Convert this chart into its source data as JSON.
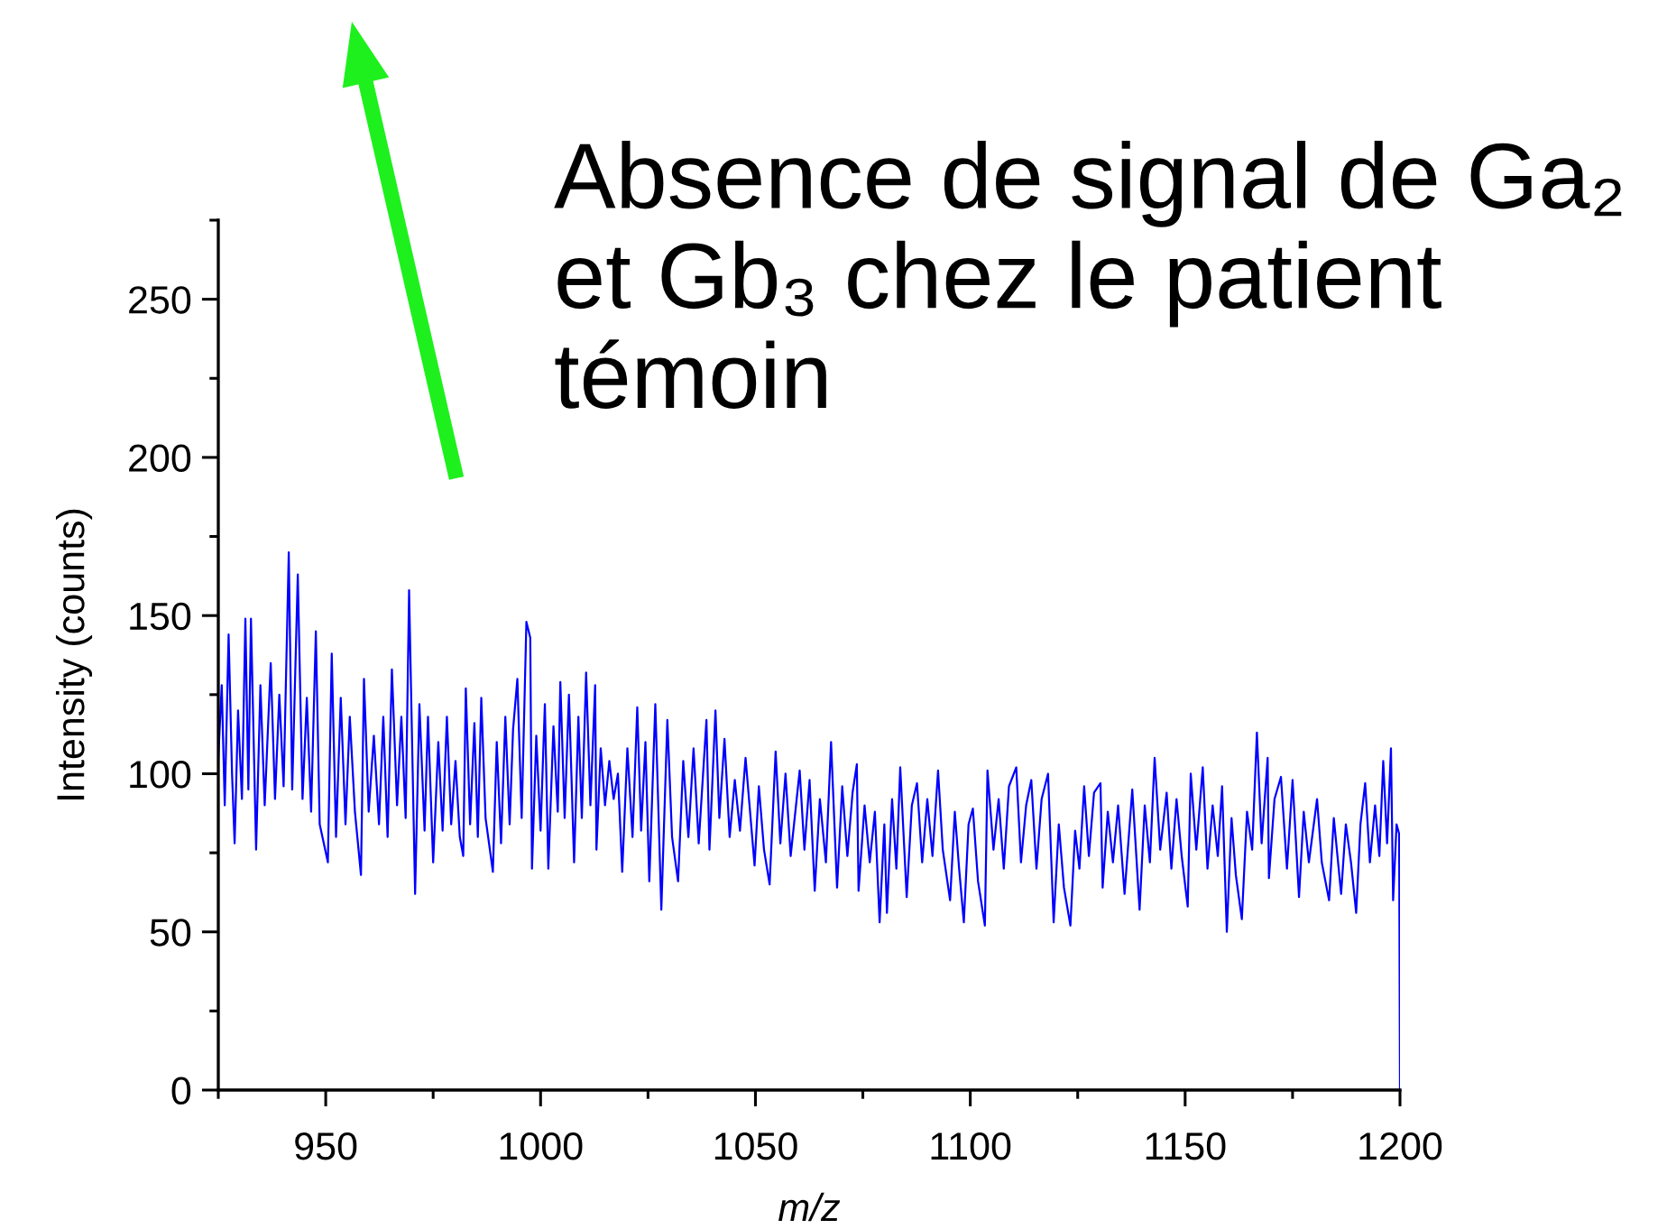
{
  "chart_data": {
    "type": "line",
    "xlabel": "m/z",
    "ylabel": "Intensity (counts)",
    "annotations": [
      "Absence de signal de Ga₂ et Gb₃ chez le patient témoin"
    ],
    "xlim": [
      925,
      1200
    ],
    "ylim": [
      0,
      275
    ],
    "xticks": [
      {
        "value": 925,
        "label": null
      },
      950,
      {
        "value": 975,
        "label": null
      },
      1000,
      {
        "value": 1025,
        "label": null
      },
      1050,
      {
        "value": 1075,
        "label": null
      },
      1100,
      {
        "value": 1125,
        "label": null
      },
      1150,
      {
        "value": 1175,
        "label": null
      },
      1200
    ],
    "yticks": [
      0,
      {
        "value": 25,
        "label": null
      },
      50,
      {
        "value": 75,
        "label": null
      },
      100,
      {
        "value": 125,
        "label": null
      },
      150,
      {
        "value": 175,
        "label": null
      },
      200,
      {
        "value": 225,
        "label": null
      },
      250,
      {
        "value": 275,
        "label": null
      }
    ],
    "x": [
      925.0,
      925.8,
      926.5,
      927.4,
      928.2,
      928.8,
      929.6,
      930.5,
      931.3,
      932.0,
      932.6,
      933.8,
      934.8,
      935.8,
      937.2,
      938.2,
      939.2,
      940.2,
      941.4,
      942.2,
      943.5,
      944.6,
      945.6,
      946.6,
      947.7,
      948.6,
      950.5,
      951.4,
      952.4,
      953.5,
      954.6,
      955.6,
      956.8,
      958.2,
      958.9,
      960.0,
      961.2,
      962.4,
      963.4,
      964.4,
      965.4,
      966.6,
      967.6,
      968.6,
      969.4,
      970.8,
      971.8,
      973.0,
      973.8,
      975.0,
      976.2,
      977.2,
      978.2,
      979.2,
      980.2,
      981.2,
      982.0,
      982.6,
      983.6,
      984.6,
      985.4,
      986.2,
      987.2,
      988.9,
      989.8,
      990.8,
      991.8,
      992.8,
      993.6,
      994.6,
      995.6,
      996.7,
      997.6,
      998.0,
      999.0,
      1000.0,
      1001.0,
      1001.8,
      1003.0,
      1004.0,
      1004.6,
      1005.6,
      1006.6,
      1007.8,
      1008.8,
      1009.6,
      1010.6,
      1011.6,
      1012.7,
      1013.0,
      1014.0,
      1015.0,
      1016.0,
      1017.0,
      1018.0,
      1019.0,
      1020.2,
      1021.4,
      1022.5,
      1023.4,
      1024.4,
      1025.3,
      1026.7,
      1028.1,
      1029.5,
      1030.6,
      1032.0,
      1033.2,
      1034.4,
      1035.6,
      1036.8,
      1038.6,
      1039.3,
      1040.7,
      1041.6,
      1042.8,
      1044.0,
      1045.2,
      1046.4,
      1047.7,
      1049.8,
      1050.8,
      1052.0,
      1053.3,
      1054.7,
      1055.8,
      1057.0,
      1058.2,
      1060.3,
      1061.4,
      1062.6,
      1063.8,
      1065.0,
      1066.4,
      1067.6,
      1069.0,
      1070.2,
      1071.4,
      1072.6,
      1073.6,
      1074.0,
      1075.4,
      1076.6,
      1077.8,
      1078.9,
      1080.0,
      1080.6,
      1081.8,
      1082.8,
      1083.7,
      1085.2,
      1086.4,
      1087.6,
      1088.8,
      1090.0,
      1091.2,
      1092.5,
      1093.6,
      1095.3,
      1096.4,
      1097.4,
      1098.5,
      1099.6,
      1100.6,
      1101.8,
      1103.4,
      1104.0,
      1105.4,
      1106.6,
      1107.8,
      1109.0,
      1110.7,
      1111.8,
      1113.0,
      1114.2,
      1115.4,
      1116.6,
      1118.1,
      1119.4,
      1120.6,
      1121.8,
      1123.3,
      1124.4,
      1125.4,
      1126.5,
      1127.6,
      1128.8,
      1130.3,
      1130.8,
      1132.0,
      1133.2,
      1134.4,
      1135.9,
      1137.7,
      1139.4,
      1140.6,
      1141.8,
      1142.9,
      1144.2,
      1145.7,
      1146.8,
      1148.0,
      1149.2,
      1150.6,
      1151.3,
      1152.6,
      1154.1,
      1155.2,
      1156.4,
      1157.6,
      1158.6,
      1159.7,
      1160.8,
      1161.8,
      1163.2,
      1164.4,
      1165.6,
      1166.7,
      1167.8,
      1169.2,
      1169.5,
      1170.8,
      1172.3,
      1173.7,
      1175.0,
      1176.5,
      1177.6,
      1178.8,
      1180.7,
      1181.8,
      1183.5,
      1184.6,
      1186.3,
      1187.4,
      1188.6,
      1189.8,
      1190.8,
      1191.9,
      1193.0,
      1194.2,
      1195.2,
      1196.1,
      1197.0,
      1197.9,
      1198.4,
      1199.2,
      1199.8,
      1200.0
    ],
    "series": [
      {
        "color": "#0000ff",
        "values": [
          105,
          128,
          90,
          144,
          100,
          78,
          120,
          92,
          149,
          95,
          149,
          76,
          128,
          90,
          135,
          92,
          125,
          96,
          170,
          95,
          163,
          92,
          124,
          88,
          145,
          84,
          72,
          138,
          80,
          124,
          84,
          118,
          88,
          68,
          130,
          88,
          112,
          84,
          118,
          80,
          133,
          90,
          118,
          86,
          158,
          62,
          122,
          82,
          118,
          72,
          110,
          82,
          118,
          84,
          104,
          80,
          74,
          127,
          84,
          116,
          80,
          124,
          86,
          69,
          110,
          78,
          118,
          84,
          114,
          130,
          86,
          148,
          143,
          70,
          112,
          82,
          122,
          70,
          115,
          88,
          129,
          86,
          125,
          72,
          118,
          86,
          132,
          90,
          128,
          76,
          108,
          90,
          104,
          92,
          100,
          69,
          108,
          80,
          121,
          82,
          110,
          66,
          122,
          57,
          117,
          80,
          66,
          104,
          80,
          108,
          78,
          117,
          76,
          120,
          86,
          111,
          80,
          98,
          82,
          105,
          71,
          96,
          76,
          65,
          107,
          78,
          100,
          74,
          101,
          76,
          98,
          63,
          92,
          72,
          110,
          64,
          96,
          74,
          94,
          103,
          63,
          90,
          72,
          88,
          53,
          84,
          56,
          92,
          70,
          102,
          61,
          90,
          97,
          72,
          92,
          74,
          101,
          76,
          60,
          88,
          70,
          53,
          84,
          89,
          66,
          52,
          101,
          76,
          92,
          70,
          96,
          102,
          72,
          90,
          98,
          70,
          92,
          100,
          53,
          84,
          64,
          52,
          82,
          70,
          96,
          74,
          94,
          97,
          64,
          88,
          72,
          90,
          62,
          95,
          57,
          90,
          72,
          105,
          76,
          94,
          70,
          92,
          74,
          58,
          100,
          76,
          102,
          70,
          90,
          74,
          96,
          50,
          86,
          68,
          54,
          88,
          76,
          113,
          78,
          105,
          67,
          92,
          99,
          70,
          98,
          61,
          88,
          72,
          92,
          72,
          60,
          86,
          62,
          84,
          72,
          56,
          84,
          97,
          72,
          90,
          74,
          104,
          78,
          108,
          60,
          84,
          81,
          0
        ]
      }
    ]
  }
}
